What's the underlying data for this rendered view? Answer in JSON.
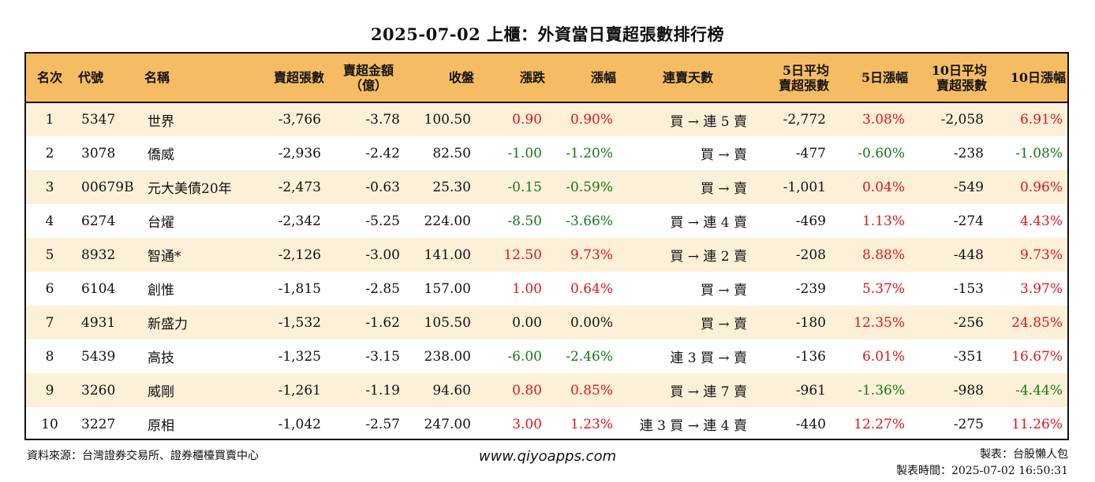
{
  "title": "2025-07-02 上櫃：外資當日賣超張數排行榜",
  "headers": {
    "rank": "名次",
    "code": "代號",
    "name": "名稱",
    "sell_lots": "賣超張數",
    "sell_amount_1": "賣超金額",
    "sell_amount_2": "（億）",
    "close": "收盤",
    "change": "漲跌",
    "pct": "漲幅",
    "streak": "連賣天數",
    "avg5_1": "5日平均",
    "avg5_2": "賣超張數",
    "pct5": "5日漲幅",
    "avg10_1": "10日平均",
    "avg10_2": "賣超張數",
    "pct10": "10日漲幅"
  },
  "rows": [
    {
      "rank": "1",
      "code": "5347",
      "name": "世界",
      "sell_lots": "-3,766",
      "sell_amount": "-3.78",
      "close": "100.50",
      "change": "0.90",
      "pct": "0.90%",
      "streak": "買 → 連 5 賣",
      "avg5": "-2,772",
      "pct5": "3.08%",
      "avg10": "-2,058",
      "pct10": "6.91%",
      "change_dir": "up",
      "pct5_dir": "up",
      "pct10_dir": "up"
    },
    {
      "rank": "2",
      "code": "3078",
      "name": "僑威",
      "sell_lots": "-2,936",
      "sell_amount": "-2.42",
      "close": "82.50",
      "change": "-1.00",
      "pct": "-1.20%",
      "streak": "買 → 賣",
      "avg5": "-477",
      "pct5": "-0.60%",
      "avg10": "-238",
      "pct10": "-1.08%",
      "change_dir": "down",
      "pct5_dir": "down",
      "pct10_dir": "down"
    },
    {
      "rank": "3",
      "code": "00679B",
      "name": "元大美債20年",
      "sell_lots": "-2,473",
      "sell_amount": "-0.63",
      "close": "25.30",
      "change": "-0.15",
      "pct": "-0.59%",
      "streak": "買 → 賣",
      "avg5": "-1,001",
      "pct5": "0.04%",
      "avg10": "-549",
      "pct10": "0.96%",
      "change_dir": "down",
      "pct5_dir": "up",
      "pct10_dir": "up"
    },
    {
      "rank": "4",
      "code": "6274",
      "name": "台燿",
      "sell_lots": "-2,342",
      "sell_amount": "-5.25",
      "close": "224.00",
      "change": "-8.50",
      "pct": "-3.66%",
      "streak": "買 → 連 4 賣",
      "avg5": "-469",
      "pct5": "1.13%",
      "avg10": "-274",
      "pct10": "4.43%",
      "change_dir": "down",
      "pct5_dir": "up",
      "pct10_dir": "up"
    },
    {
      "rank": "5",
      "code": "8932",
      "name": "智通*",
      "sell_lots": "-2,126",
      "sell_amount": "-3.00",
      "close": "141.00",
      "change": "12.50",
      "pct": "9.73%",
      "streak": "買 → 連 2 賣",
      "avg5": "-208",
      "pct5": "8.88%",
      "avg10": "-448",
      "pct10": "9.73%",
      "change_dir": "up",
      "pct5_dir": "up",
      "pct10_dir": "up"
    },
    {
      "rank": "6",
      "code": "6104",
      "name": "創惟",
      "sell_lots": "-1,815",
      "sell_amount": "-2.85",
      "close": "157.00",
      "change": "1.00",
      "pct": "0.64%",
      "streak": "買 → 賣",
      "avg5": "-239",
      "pct5": "5.37%",
      "avg10": "-153",
      "pct10": "3.97%",
      "change_dir": "up",
      "pct5_dir": "up",
      "pct10_dir": "up"
    },
    {
      "rank": "7",
      "code": "4931",
      "name": "新盛力",
      "sell_lots": "-1,532",
      "sell_amount": "-1.62",
      "close": "105.50",
      "change": "0.00",
      "pct": "0.00%",
      "streak": "買 → 賣",
      "avg5": "-180",
      "pct5": "12.35%",
      "avg10": "-256",
      "pct10": "24.85%",
      "change_dir": "flat",
      "pct5_dir": "up",
      "pct10_dir": "up"
    },
    {
      "rank": "8",
      "code": "5439",
      "name": "高技",
      "sell_lots": "-1,325",
      "sell_amount": "-3.15",
      "close": "238.00",
      "change": "-6.00",
      "pct": "-2.46%",
      "streak": "連 3 買 → 賣",
      "avg5": "-136",
      "pct5": "6.01%",
      "avg10": "-351",
      "pct10": "16.67%",
      "change_dir": "down",
      "pct5_dir": "up",
      "pct10_dir": "up"
    },
    {
      "rank": "9",
      "code": "3260",
      "name": "威剛",
      "sell_lots": "-1,261",
      "sell_amount": "-1.19",
      "close": "94.60",
      "change": "0.80",
      "pct": "0.85%",
      "streak": "買 → 連 7 賣",
      "avg5": "-961",
      "pct5": "-1.36%",
      "avg10": "-988",
      "pct10": "-4.44%",
      "change_dir": "up",
      "pct5_dir": "down",
      "pct10_dir": "down"
    },
    {
      "rank": "10",
      "code": "3227",
      "name": "原相",
      "sell_lots": "-1,042",
      "sell_amount": "-2.57",
      "close": "247.00",
      "change": "3.00",
      "pct": "1.23%",
      "streak": "連 3 買 → 連 4 賣",
      "avg5": "-440",
      "pct5": "12.27%",
      "avg10": "-275",
      "pct10": "11.26%",
      "change_dir": "up",
      "pct5_dir": "up",
      "pct10_dir": "up"
    }
  ],
  "footer": {
    "source": "資料來源：台灣證券交易所、證券櫃檯買賣中心",
    "website": "www.qiyoapps.com",
    "maker": "製表：台股懶人包",
    "time": "製表時間：2025-07-02 16:50:31"
  },
  "colors": {
    "up": "#e0151a",
    "down": "#137a17",
    "header_bg": "#f6bc63",
    "stripe": "#fdf0d8"
  }
}
